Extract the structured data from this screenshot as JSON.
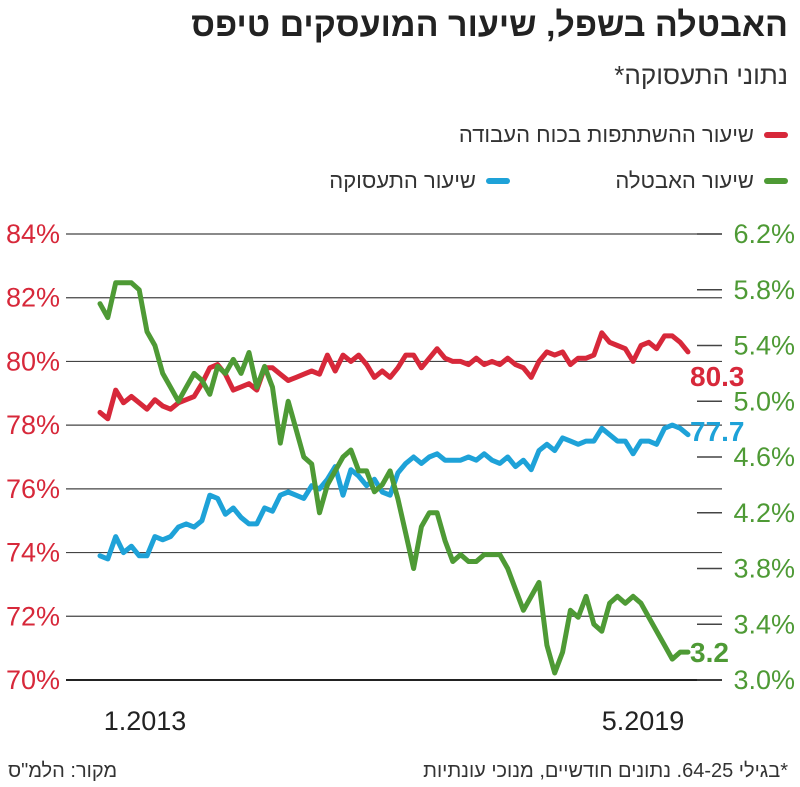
{
  "header": {
    "title": "האבטלה בשפל, שיעור המועסקים טיפס",
    "subtitle": "נתוני התעסוקה*"
  },
  "legend": [
    {
      "label": "שיעור ההשתתפות בכוח העבודה",
      "color": "#d7283a"
    },
    {
      "label": "שיעור האבטלה",
      "color": "#4e9a35"
    },
    {
      "label": "שיעור התעסוקה",
      "color": "#1ea2d8"
    }
  ],
  "footer": {
    "note": "*בגילי 64-25. נתונים חודשיים, מנוכי עונתיות",
    "source": "מקור: הלמ\"ס"
  },
  "chart_data": {
    "type": "line",
    "x_tick_labels": [
      "1.2013",
      "5.2019"
    ],
    "left_axis": {
      "ticks": [
        "84%",
        "82%",
        "80%",
        "78%",
        "76%",
        "74%",
        "72%",
        "70%"
      ],
      "ylim": [
        70,
        84
      ],
      "color": "#d7283a"
    },
    "right_axis": {
      "ticks": [
        "6.2%",
        "5.8%",
        "5.4%",
        "5.0%",
        "4.6%",
        "4.2%",
        "3.8%",
        "3.4%",
        "3.0%"
      ],
      "ylim": [
        3.0,
        6.2
      ],
      "color": "#4e9a35"
    },
    "series": [
      {
        "name": "שיעור ההשתתפות בכוח העבודה",
        "axis": "left",
        "color": "#d7283a",
        "end_label": "80.3",
        "values": [
          78.4,
          78.2,
          79.1,
          78.7,
          78.9,
          78.7,
          78.5,
          78.8,
          78.6,
          78.5,
          78.7,
          78.8,
          78.9,
          79.3,
          79.8,
          79.9,
          79.6,
          79.1,
          79.2,
          79.3,
          79.1,
          79.8,
          79.8,
          79.6,
          79.4,
          79.5,
          79.6,
          79.7,
          79.6,
          80.2,
          79.7,
          80.2,
          80.0,
          80.2,
          79.9,
          79.5,
          79.7,
          79.5,
          79.8,
          80.2,
          80.2,
          79.8,
          80.1,
          80.4,
          80.1,
          80.0,
          80.0,
          79.9,
          80.1,
          79.9,
          80.0,
          79.9,
          80.1,
          79.9,
          79.8,
          79.5,
          80.0,
          80.3,
          80.2,
          80.3,
          79.9,
          80.1,
          80.1,
          80.2,
          80.9,
          80.6,
          80.5,
          80.4,
          80.0,
          80.5,
          80.6,
          80.4,
          80.8,
          80.8,
          80.6,
          80.3
        ]
      },
      {
        "name": "שיעור התעסוקה",
        "axis": "left",
        "color": "#1ea2d8",
        "end_label": "77.7",
        "values": [
          73.9,
          73.8,
          74.5,
          74.0,
          74.2,
          73.9,
          73.9,
          74.5,
          74.4,
          74.5,
          74.8,
          74.9,
          74.8,
          75.0,
          75.8,
          75.7,
          75.2,
          75.4,
          75.1,
          74.9,
          74.9,
          75.4,
          75.3,
          75.8,
          75.9,
          75.8,
          75.7,
          76.1,
          76.0,
          76.3,
          76.7,
          75.8,
          76.6,
          76.4,
          76.1,
          76.3,
          75.9,
          75.8,
          76.5,
          76.8,
          77.0,
          76.8,
          77.0,
          77.1,
          76.9,
          76.9,
          76.9,
          77.0,
          76.9,
          77.1,
          76.9,
          76.8,
          77.0,
          76.7,
          76.9,
          76.6,
          77.2,
          77.4,
          77.2,
          77.6,
          77.5,
          77.4,
          77.5,
          77.5,
          77.9,
          77.7,
          77.5,
          77.5,
          77.1,
          77.5,
          77.5,
          77.4,
          77.9,
          78.0,
          77.9,
          77.7
        ]
      },
      {
        "name": "שיעור האבטלה",
        "axis": "right",
        "color": "#4e9a35",
        "end_label": "3.2",
        "values": [
          5.7,
          5.6,
          5.85,
          5.85,
          5.85,
          5.8,
          5.5,
          5.4,
          5.2,
          5.1,
          5.0,
          5.1,
          5.2,
          5.15,
          5.05,
          5.25,
          5.2,
          5.3,
          5.2,
          5.35,
          5.1,
          5.25,
          5.1,
          4.7,
          5.0,
          4.8,
          4.6,
          4.55,
          4.2,
          4.4,
          4.5,
          4.6,
          4.65,
          4.5,
          4.5,
          4.35,
          4.4,
          4.5,
          4.3,
          4.05,
          3.8,
          4.1,
          4.2,
          4.2,
          4.0,
          3.85,
          3.9,
          3.85,
          3.85,
          3.9,
          3.9,
          3.9,
          3.8,
          3.65,
          3.5,
          3.6,
          3.7,
          3.25,
          3.05,
          3.2,
          3.5,
          3.45,
          3.6,
          3.4,
          3.35,
          3.55,
          3.6,
          3.55,
          3.6,
          3.55,
          3.45,
          3.35,
          3.25,
          3.15,
          3.2,
          3.2
        ]
      }
    ]
  }
}
